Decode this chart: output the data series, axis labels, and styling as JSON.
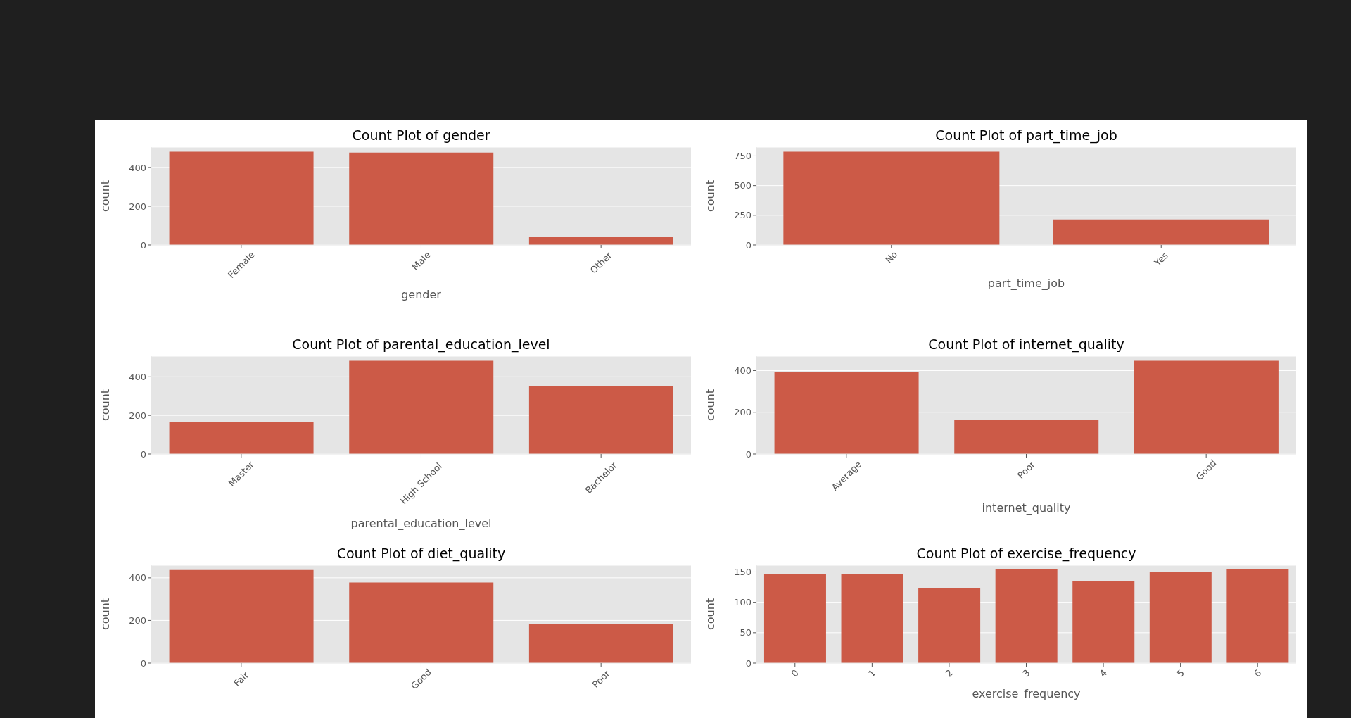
{
  "chart_data": [
    {
      "type": "bar",
      "title": "Count Plot of gender",
      "xlabel": "gender",
      "ylabel": "count",
      "categories": [
        "Female",
        "Male",
        "Other"
      ],
      "values": [
        481,
        477,
        42
      ],
      "color": "#cc5a47",
      "ylim": [
        0,
        505
      ],
      "yticks": [
        0,
        200,
        400
      ],
      "grid": "y"
    },
    {
      "type": "bar",
      "title": "Count Plot of part_time_job",
      "xlabel": "part_time_job",
      "ylabel": "count",
      "categories": [
        "No",
        "Yes"
      ],
      "values": [
        785,
        215
      ],
      "color": "#cc5a47",
      "ylim": [
        0,
        824
      ],
      "yticks": [
        0,
        250,
        500,
        750
      ],
      "grid": "y"
    },
    {
      "type": "bar",
      "title": "Count Plot of parental_education_level",
      "xlabel": "parental_education_level",
      "ylabel": "count",
      "categories": [
        "Master",
        "High School",
        "Bachelor"
      ],
      "values": [
        167,
        483,
        350
      ],
      "color": "#cc5a47",
      "ylim": [
        0,
        507
      ],
      "yticks": [
        0,
        200,
        400
      ],
      "grid": "y"
    },
    {
      "type": "bar",
      "title": "Count Plot of internet_quality",
      "xlabel": "internet_quality",
      "ylabel": "count",
      "categories": [
        "Average",
        "Poor",
        "Good"
      ],
      "values": [
        391,
        162,
        447
      ],
      "color": "#cc5a47",
      "ylim": [
        0,
        469
      ],
      "yticks": [
        0,
        200,
        400
      ],
      "grid": "y"
    },
    {
      "type": "bar",
      "title": "Count Plot of diet_quality",
      "ylabel": "count",
      "categories": [
        "Fair",
        "Good",
        "Poor"
      ],
      "values": [
        437,
        378,
        185
      ],
      "color": "#cc5a47",
      "ylim": [
        0,
        459
      ],
      "yticks": [
        0,
        200,
        400
      ],
      "grid": "y"
    },
    {
      "type": "bar",
      "title": "Count Plot of exercise_frequency",
      "xlabel": "exercise_frequency",
      "ylabel": "count",
      "categories": [
        "0",
        "1",
        "2",
        "3",
        "4",
        "5",
        "6"
      ],
      "values": [
        146,
        147,
        123,
        154,
        135,
        150,
        154
      ],
      "color": "#cc5a47",
      "ylim": [
        0,
        161
      ],
      "yticks": [
        0,
        50,
        100,
        150
      ],
      "grid": "y"
    }
  ]
}
